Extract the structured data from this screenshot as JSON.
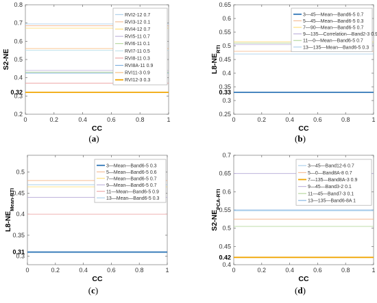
{
  "chart_data": [
    {
      "type": "line",
      "panel_label": "(a)",
      "xlabel": "CC",
      "ylabel_main": "S2-NE",
      "ylabel_sub": "",
      "xlim": [
        0,
        1
      ],
      "ylim": [
        0.2,
        0.8
      ],
      "xticks": [
        "0",
        "0.2",
        "0.4",
        "0.6",
        "0.8",
        "1"
      ],
      "yticks": [
        "0.2",
        "0.3",
        "0.4",
        "0.5",
        "0.6",
        "0.7",
        "0.8"
      ],
      "highlight_value": 0.32,
      "highlight_label": "0.32",
      "x": [
        0,
        1
      ],
      "series": [
        {
          "name": "RVI2-12 0.7",
          "value": 0.695,
          "color": "#9ec8e8",
          "width": 0.8
        },
        {
          "name": "RVI3-12 0.1",
          "value": 0.685,
          "color": "#f4b183",
          "width": 0.8
        },
        {
          "name": "RVI4-12 0.7",
          "value": 0.672,
          "color": "#ffd966",
          "width": 0.8
        },
        {
          "name": "RVI5-11 0.7",
          "value": 0.44,
          "color": "#b4a7d6",
          "width": 0.8
        },
        {
          "name": "RVI6-11 0.1",
          "value": 0.43,
          "color": "#a9d18e",
          "width": 0.8
        },
        {
          "name": "RVI7-11 0.5",
          "value": 0.55,
          "color": "#b7dde8",
          "width": 0.8
        },
        {
          "name": "RVI8-11 0.3",
          "value": 0.37,
          "color": "#ea9999",
          "width": 0.8
        },
        {
          "name": "RVI8A-11 0.9",
          "value": 0.425,
          "color": "#6fa8dc",
          "width": 0.8
        },
        {
          "name": "RVI11-3 0.9",
          "value": 0.56,
          "color": "#f6b26b",
          "width": 0.8
        },
        {
          "name": "RVI12-3 0.3",
          "value": 0.32,
          "color": "#f0a500",
          "width": 1.8
        }
      ]
    },
    {
      "type": "line",
      "panel_label": "(b)",
      "xlabel": "CC",
      "ylabel_main": "L8-NE",
      "ylabel_sub": "RTI",
      "xlim": [
        0,
        1
      ],
      "ylim": [
        0.25,
        0.65
      ],
      "xticks": [
        "0",
        "0.2",
        "0.4",
        "0.6",
        "0.8",
        "1"
      ],
      "yticks": [
        "0.25",
        "0.3",
        "0.35",
        "0.4",
        "0.45",
        "0.5",
        "0.55",
        "0.6",
        "0.65"
      ],
      "highlight_value": 0.33,
      "highlight_label": "0.33",
      "x": [
        0,
        1
      ],
      "series": [
        {
          "name": "3—45—Mean—Band6-5 0.7",
          "value": 0.33,
          "color": "#2e75b6",
          "width": 1.8
        },
        {
          "name": "5—45—Mean—Band6-5 0.3",
          "value": 0.48,
          "color": "#f4b183",
          "width": 0.8
        },
        {
          "name": "7—90—Mean—Band6-5 0.7",
          "value": 0.515,
          "color": "#ffd966",
          "width": 0.8
        },
        {
          "name": "9—135—Correlation—Band2-3 0.9",
          "value": 0.505,
          "color": "#b4a7d6",
          "width": 0.8
        },
        {
          "name": "11—0—Mean—Band6-5 0.7",
          "value": 0.51,
          "color": "#a9d18e",
          "width": 0.8
        },
        {
          "name": "13—135—Mean—Band6-5 0.3",
          "value": 0.47,
          "color": "#9ec8e8",
          "width": 0.8
        }
      ]
    },
    {
      "type": "line",
      "panel_label": "(c)",
      "xlabel": "CC",
      "ylabel_main": "L8-NE",
      "ylabel_sub": "Mean-RTI",
      "xlim": [
        0,
        1
      ],
      "ylim": [
        0.28,
        0.54
      ],
      "xticks": [
        "0",
        "0.2",
        "0.4",
        "0.6",
        "0.8",
        "1"
      ],
      "yticks": [
        "0.3",
        "0.35",
        "0.4",
        "0.45",
        "0.5"
      ],
      "highlight_value": 0.31,
      "highlight_label": "0.31",
      "x": [
        0,
        1
      ],
      "series": [
        {
          "name": "3—Mean—Band6-5 0.3",
          "value": 0.31,
          "color": "#2e75b6",
          "width": 1.8
        },
        {
          "name": "5—Mean—Band6-5 0.6",
          "value": 0.48,
          "color": "#f4b183",
          "width": 0.8
        },
        {
          "name": "7—Mean—Band6-5 0.7",
          "value": 0.465,
          "color": "#ffd966",
          "width": 0.8
        },
        {
          "name": "9—Mean—Band6-5 0.7",
          "value": 0.44,
          "color": "#b4a7d6",
          "width": 0.8
        },
        {
          "name": "11—Mean—Band6-5 0.9",
          "value": 0.4,
          "color": "#ea9999",
          "width": 0.8
        },
        {
          "name": "13—Mean—Band6-5 0.3",
          "value": 0.47,
          "color": "#9ec8e8",
          "width": 0.8
        }
      ]
    },
    {
      "type": "line",
      "panel_label": "(d)",
      "xlabel": "CC",
      "ylabel_main": "S2-NE",
      "ylabel_sub": "PCA-RTI",
      "xlim": [
        0,
        1
      ],
      "ylim": [
        0.4,
        0.7
      ],
      "xticks": [
        "0",
        "0.2",
        "0.4",
        "0.6",
        "0.8",
        "1"
      ],
      "yticks": [
        "0.4",
        "0.45",
        "0.5",
        "0.55",
        "0.6",
        "0.65",
        "0.7"
      ],
      "highlight_value": 0.42,
      "highlight_label": "0.42",
      "x": [
        0,
        1
      ],
      "series": [
        {
          "name": "3—45—Band12-6 0.7",
          "value": 0.548,
          "color": "#9ec8e8",
          "width": 0.8
        },
        {
          "name": "5—0—Band8A-8 0.7",
          "value": 0.525,
          "color": "#f4b183",
          "width": 0.8
        },
        {
          "name": "7—135—Band8A-3 0.9",
          "value": 0.42,
          "color": "#f0a500",
          "width": 1.8
        },
        {
          "name": "9—45—Band3-2 0.1",
          "value": 0.65,
          "color": "#b4a7d6",
          "width": 0.8
        },
        {
          "name": "11—45—Band7-3 0.1",
          "value": 0.505,
          "color": "#a9d18e",
          "width": 0.8
        },
        {
          "name": "13—135—Band6-8A 1",
          "value": 0.55,
          "color": "#6fa8dc",
          "width": 0.8
        }
      ]
    }
  ]
}
